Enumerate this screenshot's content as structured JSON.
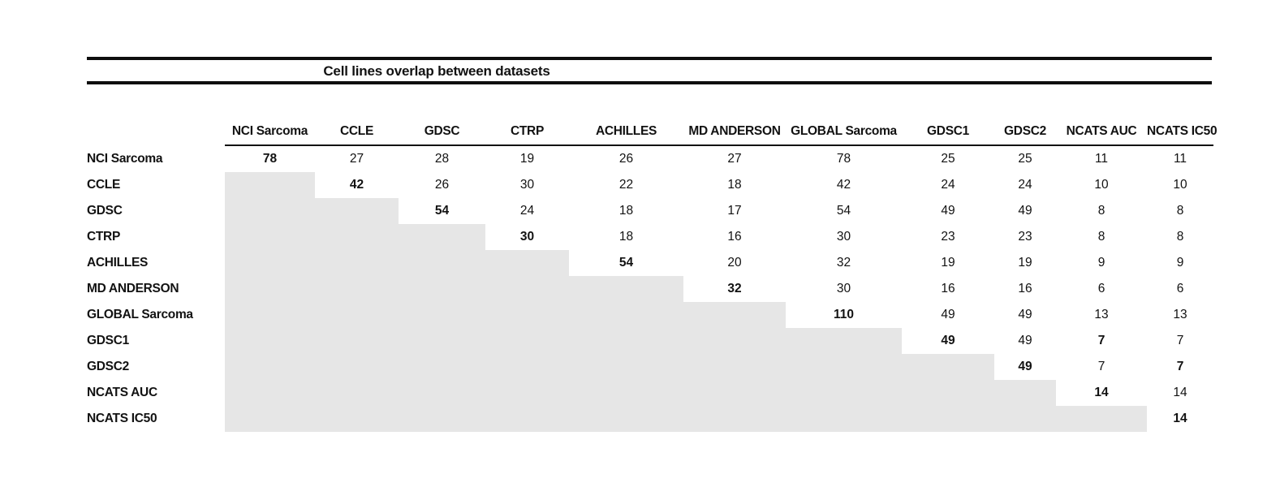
{
  "chart_data": {
    "type": "table",
    "title": "Cell lines overlap between datasets",
    "description_of_structure": "upper-triangular pairwise overlap matrix; lower triangle is shaded gray with no values; diagonal values are bold",
    "labels": [
      "NCI Sarcoma",
      "CCLE",
      "GDSC",
      "CTRP",
      "ACHILLES",
      "MD ANDERSON",
      "GLOBAL Sarcoma",
      "GDSC1",
      "GDSC2",
      "NCATS AUC",
      "NCATS IC50"
    ],
    "matrix": [
      [
        78,
        27,
        28,
        19,
        26,
        27,
        78,
        25,
        25,
        11,
        11
      ],
      [
        null,
        42,
        26,
        30,
        22,
        18,
        42,
        24,
        24,
        10,
        10
      ],
      [
        null,
        null,
        54,
        24,
        18,
        17,
        54,
        49,
        49,
        8,
        8
      ],
      [
        null,
        null,
        null,
        30,
        18,
        16,
        30,
        23,
        23,
        8,
        8
      ],
      [
        null,
        null,
        null,
        null,
        54,
        20,
        32,
        19,
        19,
        9,
        9
      ],
      [
        null,
        null,
        null,
        null,
        null,
        32,
        30,
        16,
        16,
        6,
        6
      ],
      [
        null,
        null,
        null,
        null,
        null,
        null,
        110,
        49,
        49,
        13,
        13
      ],
      [
        null,
        null,
        null,
        null,
        null,
        null,
        null,
        49,
        49,
        7,
        7
      ],
      [
        null,
        null,
        null,
        null,
        null,
        null,
        null,
        null,
        49,
        7,
        7
      ],
      [
        null,
        null,
        null,
        null,
        null,
        null,
        null,
        null,
        null,
        14,
        14
      ],
      [
        null,
        null,
        null,
        null,
        null,
        null,
        null,
        null,
        null,
        null,
        14
      ]
    ],
    "bold_cells": [
      [
        0,
        0
      ],
      [
        1,
        1
      ],
      [
        2,
        2
      ],
      [
        3,
        3
      ],
      [
        4,
        4
      ],
      [
        5,
        5
      ],
      [
        6,
        6
      ],
      [
        7,
        7
      ],
      [
        7,
        9
      ],
      [
        8,
        8
      ],
      [
        8,
        10
      ],
      [
        9,
        9
      ],
      [
        10,
        10
      ]
    ],
    "lower_triangle_shaded": true,
    "legend_position": "none",
    "grid": false,
    "colors": {
      "shading": "#e6e6e6",
      "rule": "#0e0e0e",
      "text": "#121212"
    }
  }
}
